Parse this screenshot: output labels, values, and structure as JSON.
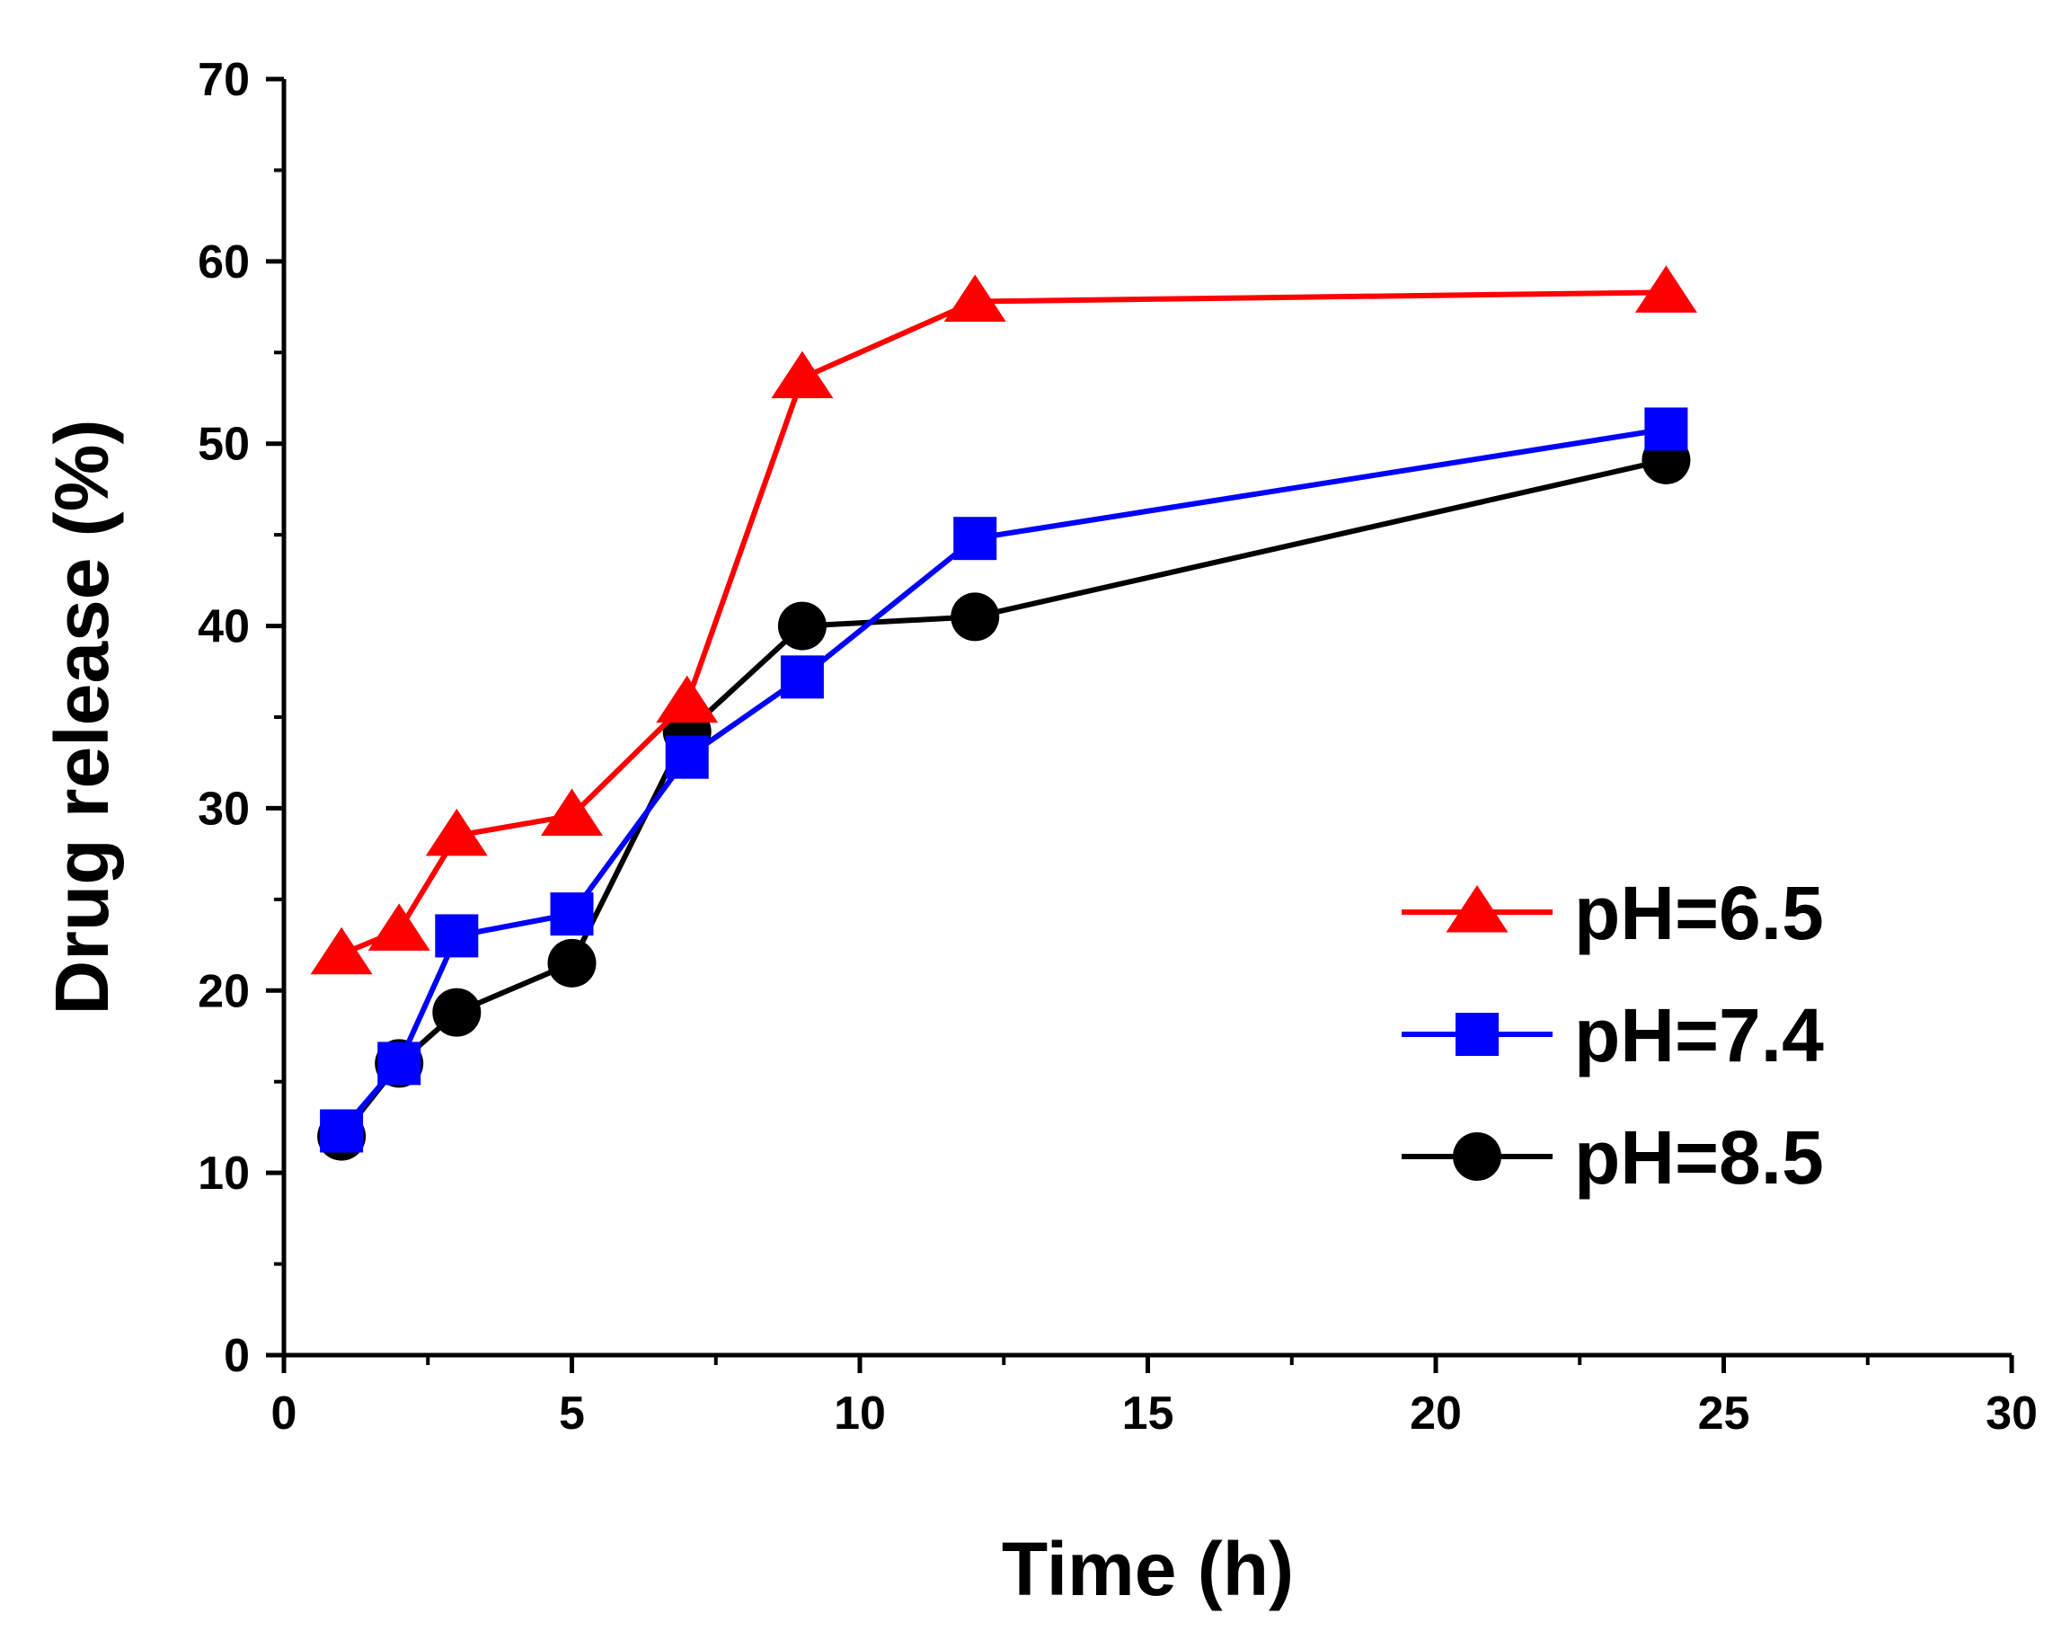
{
  "chart_data": {
    "type": "line",
    "title": "",
    "xlabel": "Time (h)",
    "ylabel": "Drug release (%)",
    "xlim": [
      0,
      30
    ],
    "ylim": [
      0,
      70
    ],
    "xticks": [
      0,
      5,
      10,
      15,
      20,
      25,
      30
    ],
    "yticks": [
      0,
      10,
      20,
      30,
      40,
      50,
      60,
      70
    ],
    "grid": false,
    "legend_position": "right",
    "series": [
      {
        "name": "pH=6.5",
        "color": "#ff0000",
        "marker": "triangle",
        "x": [
          1,
          2,
          3,
          5,
          7,
          9,
          12,
          24
        ],
        "y": [
          22.0,
          23.3,
          28.5,
          29.6,
          35.8,
          53.6,
          57.8,
          58.3
        ]
      },
      {
        "name": "pH=7.4",
        "color": "#0000ff",
        "marker": "square",
        "x": [
          1,
          2,
          3,
          5,
          7,
          9,
          12,
          24
        ],
        "y": [
          12.3,
          16.0,
          23.0,
          24.2,
          32.8,
          37.2,
          44.8,
          50.8
        ]
      },
      {
        "name": "pH=8.5",
        "color": "#000000",
        "marker": "circle",
        "x": [
          1,
          2,
          3,
          5,
          7,
          9,
          12,
          24
        ],
        "y": [
          12.0,
          16.0,
          18.8,
          21.5,
          34.2,
          40.0,
          40.5,
          49.1
        ]
      }
    ]
  }
}
